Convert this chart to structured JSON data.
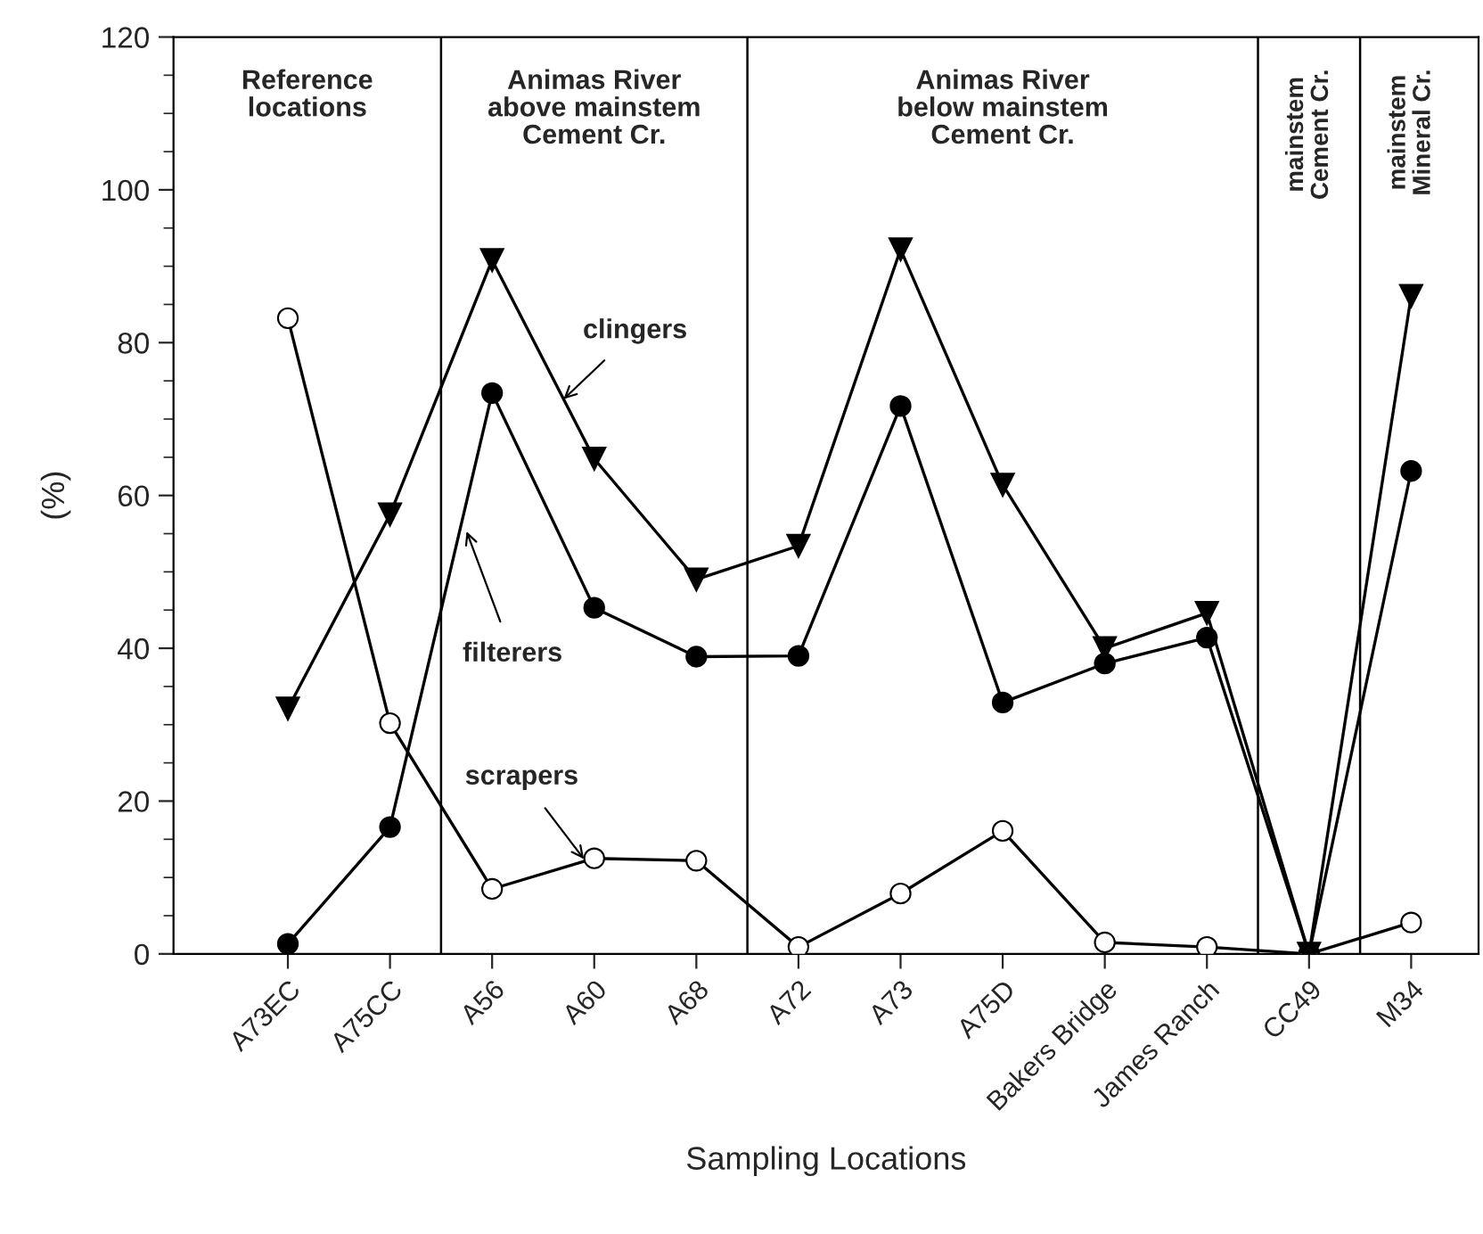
{
  "chart_data": {
    "type": "line",
    "xlabel": "Sampling Locations",
    "ylabel": "(%)",
    "categories": [
      "A73EC",
      "A75CC",
      "A56",
      "A60",
      "A68",
      "A72",
      "A73",
      "A75D",
      "Bakers Bridge",
      "James Ranch",
      "CC49",
      "M34"
    ],
    "series": [
      {
        "name": "clingers",
        "color": "#000000",
        "marker": "triangle",
        "values": [
          32.1,
          57.5,
          90.8,
          64.8,
          49.0,
          53.4,
          92.2,
          61.4,
          40.0,
          44.6,
          0,
          86.1
        ]
      },
      {
        "name": "filterers",
        "color": "#000000",
        "marker": "circle",
        "values": [
          1.3,
          16.6,
          73.4,
          45.3,
          38.9,
          39.0,
          71.7,
          32.9,
          38.0,
          41.4,
          0,
          63.2
        ]
      },
      {
        "name": "scrapers",
        "color": "#000000",
        "marker": "circle",
        "values": [
          83.2,
          30.2,
          8.5,
          12.5,
          12.2,
          0.9,
          7.9,
          16.1,
          1.5,
          0.9,
          0,
          4.1
        ]
      }
    ],
    "ylim": [
      0,
      120
    ],
    "yticks": [
      0,
      20,
      40,
      60,
      80,
      100,
      120
    ],
    "annotations": [
      "Reference\nlocations",
      "Animas River\nabove mainstem\nCement Cr.",
      "Animas River\nbelow mainstem\nCement Cr.",
      "mainstem\nCement Cr.",
      "mainstem\nMineral Cr."
    ],
    "grid": false,
    "legend": false,
    "line_style": "solid"
  }
}
